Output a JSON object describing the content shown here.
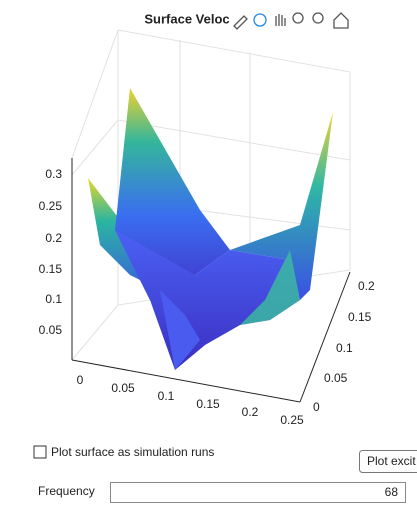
{
  "plot": {
    "title": "Surface Veloc",
    "z_ticks": [
      "0.3",
      "0.25",
      "0.2",
      "0.15",
      "0.1",
      "0.05"
    ],
    "x_ticks": [
      "0",
      "0.05",
      "0.1",
      "0.15",
      "0.2",
      "0.25"
    ],
    "y_ticks": [
      "0.2",
      "0.15",
      "0.1",
      "0.05",
      "0"
    ]
  },
  "controls": {
    "checkbox_label": "Plot surface as simulation runs",
    "button_label": "Plot excit",
    "frequency_label": "Frequency",
    "frequency_value": "68"
  }
}
